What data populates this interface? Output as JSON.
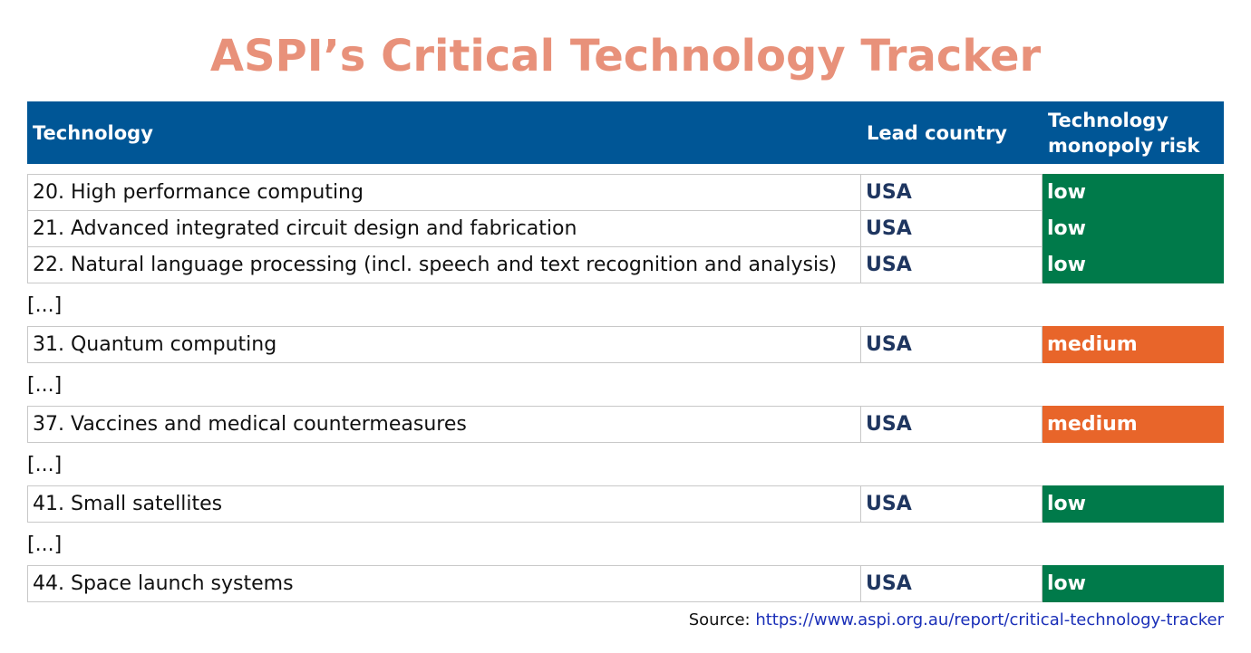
{
  "title": "ASPI’s Critical Technology Tracker",
  "table": {
    "header": [
      "Technology",
      "Lead country",
      "Technology monopoly risk"
    ],
    "rows": [
      [
        "20. High performance computing",
        "USA",
        "low"
      ],
      [
        "21. Advanced integrated circuit design and fabrication",
        "USA",
        "low"
      ],
      [
        "22. Natural language processing (incl. speech and text recognition and analysis)",
        "USA",
        "low"
      ],
      [
        "[...]"
      ],
      [
        "31. Quantum computing",
        "USA",
        "medium"
      ],
      [
        "[...]"
      ],
      [
        "37. Vaccines and medical countermeasures",
        "USA",
        "medium"
      ],
      [
        "[...]"
      ],
      [
        "41. Small satellites",
        "USA",
        "low"
      ],
      [
        "[...]"
      ],
      [
        "44. Space launch systems",
        "USA",
        "low"
      ]
    ]
  },
  "source": {
    "label": "Source:",
    "url": "https://www.aspi.org.au/report/critical-technology-tracker"
  }
}
